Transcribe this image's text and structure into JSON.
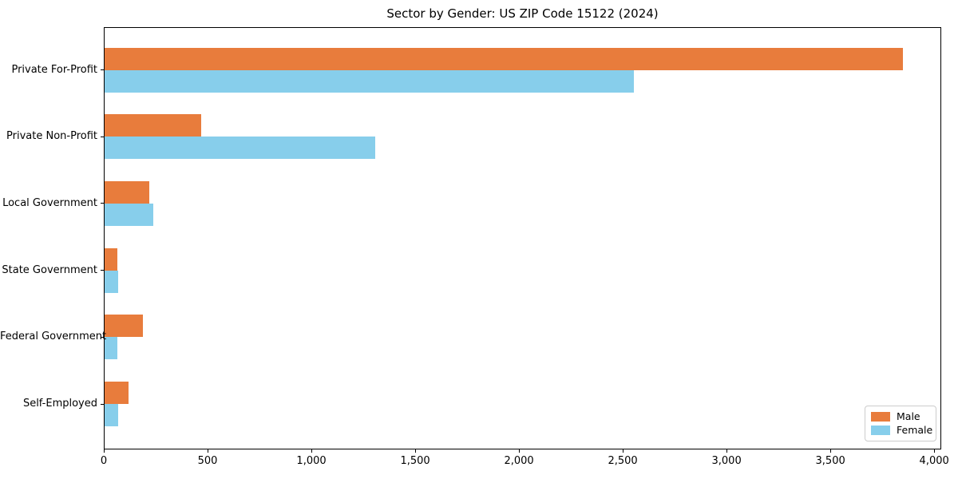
{
  "chart_data": {
    "type": "bar",
    "orientation": "horizontal",
    "title": "Sector by Gender: US ZIP Code 15122 (2024)",
    "categories": [
      "Private For-Profit",
      "Private Non-Profit",
      "Local Government",
      "State Government",
      "Federal Government",
      "Self-Employed"
    ],
    "series": [
      {
        "name": "Male",
        "color": "#E87C3C",
        "values": [
          3845,
          465,
          215,
          60,
          185,
          115
        ]
      },
      {
        "name": "Female",
        "color": "#87CEEB",
        "values": [
          2550,
          1305,
          235,
          65,
          62,
          65
        ]
      }
    ],
    "xlabel": "",
    "ylabel": "",
    "xlim": [
      0,
      4034
    ],
    "xticks": {
      "values": [
        0,
        500,
        1000,
        1500,
        2000,
        2500,
        3000,
        3500,
        4000
      ],
      "labels": [
        "0",
        "500",
        "1,000",
        "1,500",
        "2,000",
        "2,500",
        "3,000",
        "3,500",
        "4,000"
      ]
    },
    "grid": false,
    "legend": {
      "position": "lower right",
      "labels": [
        "Male",
        "Female"
      ]
    }
  },
  "colors": {
    "background": "#ffffff",
    "spine": "#000000",
    "text": "#000000",
    "legend_border": "#cccccc"
  }
}
